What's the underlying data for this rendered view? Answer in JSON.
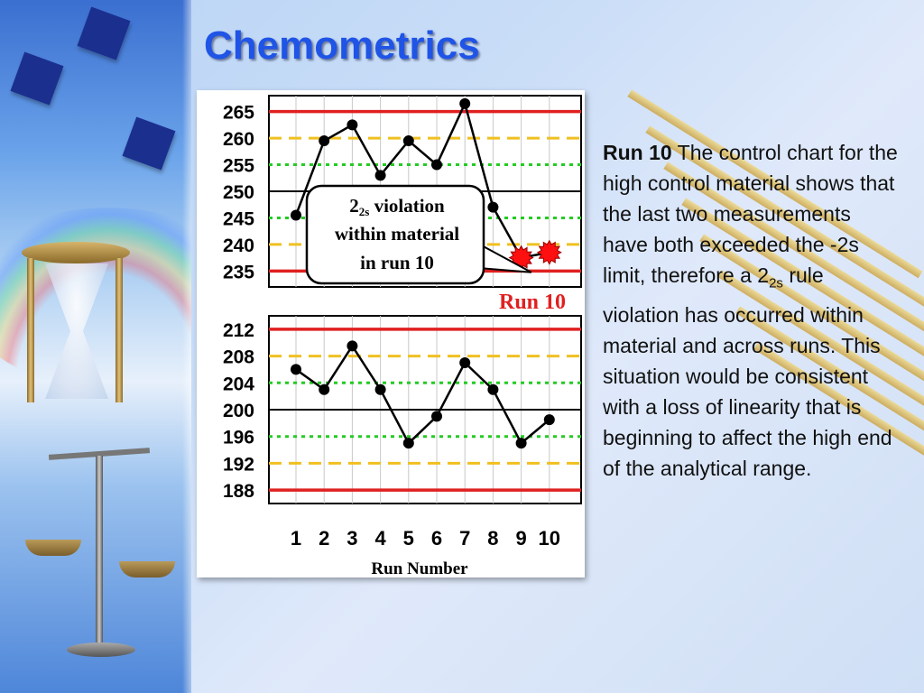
{
  "slide": {
    "title": "Chemometrics",
    "body": {
      "lead": "Run 10",
      "part1": " The control chart for the high control material shows that the last two measurements have both exceeded the -2s limit, therefore a 2",
      "sub": "2s",
      "part2": " rule violation has occurred within material and across runs. This situation would be consistent with a loss of linearity that is beginning to affect the high end of the analytical range."
    }
  },
  "colors": {
    "mean_line": "#000000",
    "limit_1s": "#22cc22",
    "limit_2s": "#f0c020",
    "limit_3s": "#e02020",
    "violation": "#ff1010",
    "run_label": "#e02020"
  },
  "chart_data": [
    {
      "type": "line",
      "name": "high-control",
      "x": [
        1,
        2,
        3,
        4,
        5,
        6,
        7,
        8,
        9,
        10
      ],
      "values": [
        245.5,
        259.5,
        262.5,
        253,
        259.5,
        255,
        266.5,
        247,
        237.5,
        238.5
      ],
      "yticks": [
        265,
        260,
        255,
        250,
        245,
        240,
        235
      ],
      "ylim": [
        232,
        268
      ],
      "mean": 250,
      "limits": {
        "1s": [
          255,
          245
        ],
        "2s": [
          260,
          240
        ],
        "3s": [
          265,
          235
        ]
      },
      "violation_indices": [
        8,
        9
      ],
      "callout": {
        "line1": "2",
        "line1_sub": "2s",
        "line1_tail": " violation",
        "line2": "within material",
        "line3": "in run 10"
      },
      "run_label": "Run 10"
    },
    {
      "type": "line",
      "name": "low-control",
      "x": [
        1,
        2,
        3,
        4,
        5,
        6,
        7,
        8,
        9,
        10
      ],
      "values": [
        206,
        203,
        209.5,
        203,
        195,
        199,
        207,
        203,
        195,
        198.5
      ],
      "yticks": [
        212,
        208,
        204,
        200,
        196,
        192,
        188
      ],
      "ylim": [
        186,
        214
      ],
      "mean": 200,
      "limits": {
        "1s": [
          204,
          196
        ],
        "2s": [
          208,
          192
        ],
        "3s": [
          212,
          188
        ]
      },
      "xlabel": "Run Number",
      "xticks": [
        "1",
        "2",
        "3",
        "4",
        "5",
        "6",
        "7",
        "8",
        "9",
        "10"
      ]
    }
  ]
}
